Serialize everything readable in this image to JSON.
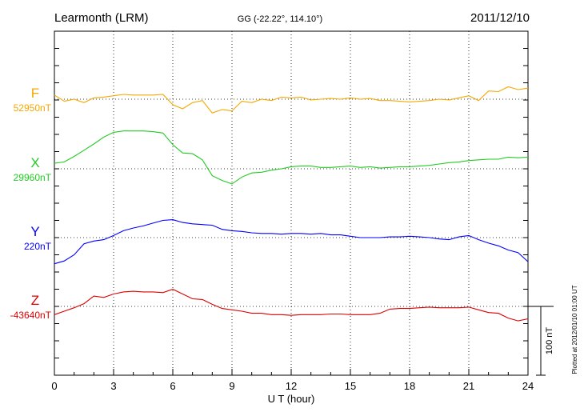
{
  "header": {
    "station": "Learmonth (LRM)",
    "coords": "GG (-22.22°, 114.10°)",
    "date": "2011/12/10"
  },
  "footer": {
    "xlabel": "U T (hour)",
    "scale_label": "100 nT",
    "plotted_note": "Plotted at 2012/01/10 01:00 UT"
  },
  "chart_data": {
    "type": "line",
    "title": "Learmonth (LRM)",
    "xlabel": "U T (hour)",
    "ylabel": "",
    "xlim": [
      0,
      24
    ],
    "x_ticks": [
      "0",
      "3",
      "6",
      "9",
      "12",
      "15",
      "18",
      "21",
      "24"
    ],
    "grid": true,
    "scale_bar_nT": 100,
    "x": [
      0,
      0.5,
      1,
      1.5,
      2,
      2.5,
      3,
      3.5,
      4,
      4.5,
      5,
      5.5,
      6,
      6.5,
      7,
      7.5,
      8,
      8.5,
      9,
      9.5,
      10,
      10.5,
      11,
      11.5,
      12,
      12.5,
      13,
      13.5,
      14,
      14.5,
      15,
      15.5,
      16,
      16.5,
      17,
      17.5,
      18,
      18.5,
      19,
      19.5,
      20,
      20.5,
      21,
      21.5,
      22,
      22.5,
      23,
      23.5,
      24
    ],
    "series": [
      {
        "name": "F",
        "baseline_label": "52950nT",
        "color": "#f5a800",
        "values": [
          6,
          -3,
          0,
          -5,
          2,
          3,
          5,
          7,
          6,
          6,
          6,
          7,
          -8,
          -14,
          -5,
          -2,
          -20,
          -15,
          -17,
          -3,
          -5,
          0,
          -2,
          3,
          2,
          3,
          -1,
          0,
          1,
          0,
          2,
          0,
          1,
          -2,
          -2,
          -3,
          -4,
          -3,
          -2,
          0,
          -1,
          2,
          5,
          -2,
          12,
          11,
          18,
          14,
          16
        ]
      },
      {
        "name": "X",
        "baseline_label": "29960nT",
        "color": "#22cc22",
        "values": [
          8,
          10,
          18,
          27,
          36,
          46,
          53,
          55,
          55,
          55,
          54,
          52,
          35,
          23,
          22,
          13,
          -10,
          -17,
          -22,
          -12,
          -6,
          -5,
          -2,
          0,
          3,
          4,
          4,
          2,
          2,
          3,
          4,
          2,
          3,
          1,
          2,
          3,
          3,
          4,
          5,
          7,
          9,
          10,
          12,
          13,
          14,
          14,
          17,
          16,
          17
        ]
      },
      {
        "name": "Y",
        "baseline_label": "220nT",
        "color": "#0000ff",
        "values": [
          -38,
          -34,
          -25,
          -9,
          -5,
          -3,
          3,
          10,
          14,
          17,
          21,
          25,
          26,
          22,
          20,
          19,
          18,
          12,
          10,
          9,
          7,
          6,
          6,
          5,
          6,
          6,
          5,
          6,
          4,
          4,
          2,
          0,
          0,
          0,
          1,
          1,
          2,
          1,
          0,
          -2,
          -3,
          1,
          3,
          -3,
          -8,
          -12,
          -18,
          -22,
          -35
        ]
      },
      {
        "name": "Z",
        "baseline_label": "-43640nT",
        "color": "#dd0000",
        "values": [
          -12,
          -7,
          -2,
          4,
          15,
          13,
          18,
          21,
          22,
          21,
          21,
          20,
          25,
          18,
          11,
          10,
          3,
          -3,
          -5,
          -7,
          -10,
          -10,
          -12,
          -12,
          -13,
          -12,
          -12,
          -12,
          -11,
          -11,
          -12,
          -12,
          -12,
          -10,
          -4,
          -3,
          -3,
          -2,
          -1,
          -2,
          -2,
          -2,
          -1,
          -5,
          -9,
          -10,
          -17,
          -21,
          -18
        ]
      }
    ]
  }
}
